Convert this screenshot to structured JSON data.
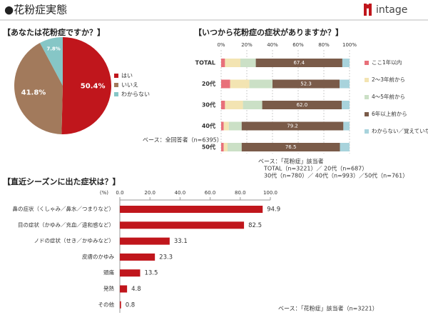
{
  "header": {
    "title": "●花粉症実態",
    "logo": "intage"
  },
  "chart_data": [
    {
      "type": "pie",
      "title": "【あなたは花粉症ですか？】",
      "categories": [
        "はい",
        "いいえ",
        "わからない"
      ],
      "values": [
        50.4,
        41.8,
        7.8
      ],
      "value_labels": [
        "50.4%",
        "41.8%",
        "7.8%"
      ],
      "colors": [
        "#c0161c",
        "#a27a5c",
        "#86c6c6"
      ],
      "notes": [
        "ベース：全回答者（n=6395）"
      ]
    },
    {
      "type": "stacked-hbar",
      "title": "【いつから花粉症の症状がありますか？】",
      "categories": [
        "TOTAL",
        "20代",
        "30代",
        "40代",
        "50代"
      ],
      "series": [
        {
          "name": "ここ1年以内",
          "color": "#e8707a",
          "values": [
            3,
            7,
            3,
            2,
            2
          ]
        },
        {
          "name": "2～3年前から",
          "color": "#f3e4b2",
          "values": [
            12,
            15,
            14,
            4,
            3
          ]
        },
        {
          "name": "4～5年前から",
          "color": "#cbe0c6",
          "values": [
            12,
            18,
            15,
            10,
            11
          ]
        },
        {
          "name": "6年以上前から",
          "color": "#7a5b49",
          "values": [
            67.4,
            52.3,
            62.0,
            79.2,
            76.5
          ],
          "value_labels": [
            "67.4",
            "52.3",
            "62.0",
            "79.2",
            "76.5"
          ]
        },
        {
          "name": "わからない／覚えていない",
          "color": "#a8d3dc",
          "values": [
            5.6,
            7.7,
            6.0,
            4.8,
            7.5
          ]
        }
      ],
      "xlim": [
        0,
        100
      ],
      "xticks": [
        {
          "value": 0,
          "label": "0%"
        },
        {
          "value": 20,
          "label": "20%"
        },
        {
          "value": 40,
          "label": "40%"
        },
        {
          "value": 60,
          "label": "60%"
        },
        {
          "value": 80,
          "label": "80%"
        },
        {
          "value": 100,
          "label": "100%"
        }
      ],
      "grid": true,
      "notes": [
        "ベース：「花粉症」該当者",
        "TOTAL（n=3221）／ 20代（n=687）",
        "30代（n=780）／ 40代（n=993）／50代（n=761）"
      ]
    },
    {
      "type": "hbar",
      "title": "【直近シーズンに出た症状は？】",
      "unit": "(%)",
      "categories": [
        "鼻の症状（くしゃみ／鼻水／つまりなど）",
        "目の症状（かゆみ／充血／違和感など）",
        "ノドの症状（せき／かゆみなど）",
        "皮膚のかゆみ",
        "頭痛",
        "発熱",
        "その他"
      ],
      "values": [
        94.9,
        82.5,
        33.1,
        23.3,
        13.5,
        4.8,
        0.8
      ],
      "color": "#c0161c",
      "xlim": [
        0,
        100
      ],
      "xticks": [
        {
          "value": 0,
          "label": "0.0"
        },
        {
          "value": 20,
          "label": "20.0"
        },
        {
          "value": 40,
          "label": "40.0"
        },
        {
          "value": 60,
          "label": "60.0"
        },
        {
          "value": 80,
          "label": "80.0"
        },
        {
          "value": 100,
          "label": "100.0"
        }
      ],
      "notes": [
        "ベース：「花粉症」該当者（n=3221）"
      ]
    }
  ]
}
